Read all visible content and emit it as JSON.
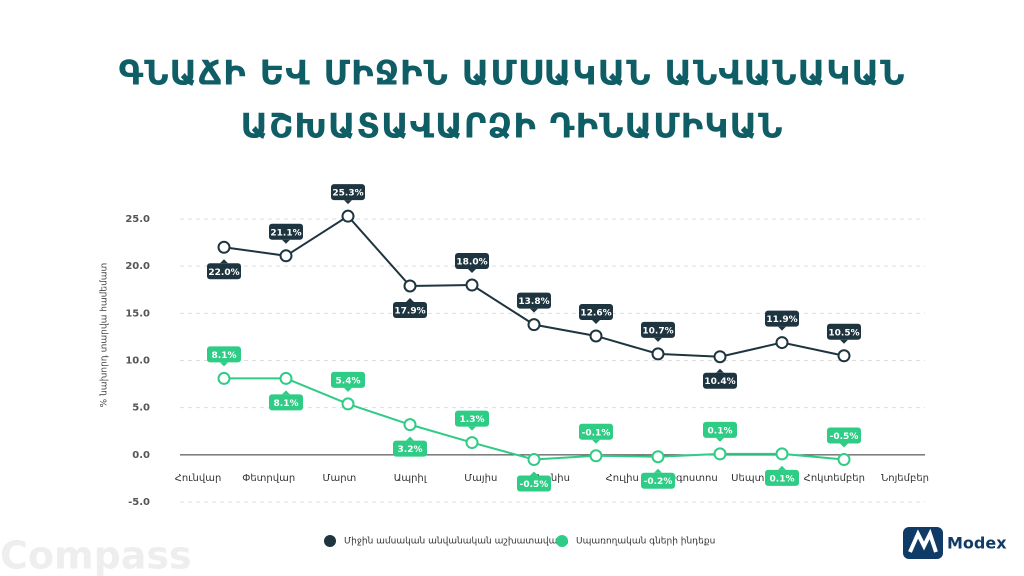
{
  "chart_data": {
    "type": "line",
    "title": [
      "ԳՆԱՃԻ ԵՎ ՄԻՋԻՆ ԱՄՍԱԿԱՆ ԱՆՎԱՆԱԿԱՆ",
      "ԱՇԽԱՏԱՎԱՐՁԻ ԴԻՆԱՄԻԿԱՆ"
    ],
    "y_label": "% նախորդ տարվա համեմատ",
    "categories": [
      "Հունվար",
      "Փետրվար",
      "Մարտ",
      "Ապրիլ",
      "Մայիս",
      "Հունիս",
      "Հուլիս",
      "Օգոստոս",
      "Սեպտեմբեր",
      "Հոկտեմբեր",
      "Նոյեմբեր"
    ],
    "series": [
      {
        "name": "Միջին ամսական անվանական աշխատավարձ",
        "color": "#1e3540",
        "values": [
          22.0,
          21.1,
          25.3,
          17.9,
          18.0,
          13.8,
          12.6,
          10.7,
          10.4,
          11.9,
          10.5
        ],
        "value_labels": [
          "22.0%",
          "21.1%",
          "25.3%",
          "17.9%",
          "18.0%",
          "13.8%",
          "12.6%",
          "10.7%",
          "10.4%",
          "11.9%",
          "10.5%"
        ]
      },
      {
        "name": "Սպառողական գների ինդեքս",
        "color": "#2ecc85",
        "values": [
          8.1,
          8.1,
          5.4,
          3.2,
          1.3,
          -0.5,
          -0.1,
          -0.2,
          0.1,
          0.1,
          -0.5
        ],
        "value_labels": [
          "8.1%",
          "8.1%",
          "5.4%",
          "3.2%",
          "1.3%",
          "-0.5%",
          "-0.1%",
          "-0.2%",
          "0.1%",
          "0.1%",
          "-0.5%"
        ]
      }
    ],
    "ylim": [
      -5,
      25
    ],
    "yticks": [
      {
        "value": -5,
        "label": "-5.0"
      },
      {
        "value": 0,
        "label": "0.0"
      },
      {
        "value": 5,
        "label": "5.0"
      },
      {
        "value": 10,
        "label": "10.0"
      },
      {
        "value": 15,
        "label": "15.0"
      },
      {
        "value": 20,
        "label": "20.0"
      },
      {
        "value": 25,
        "label": "25.0"
      }
    ],
    "grid": true
  },
  "logos": [
    "Compass",
    "Modex"
  ]
}
